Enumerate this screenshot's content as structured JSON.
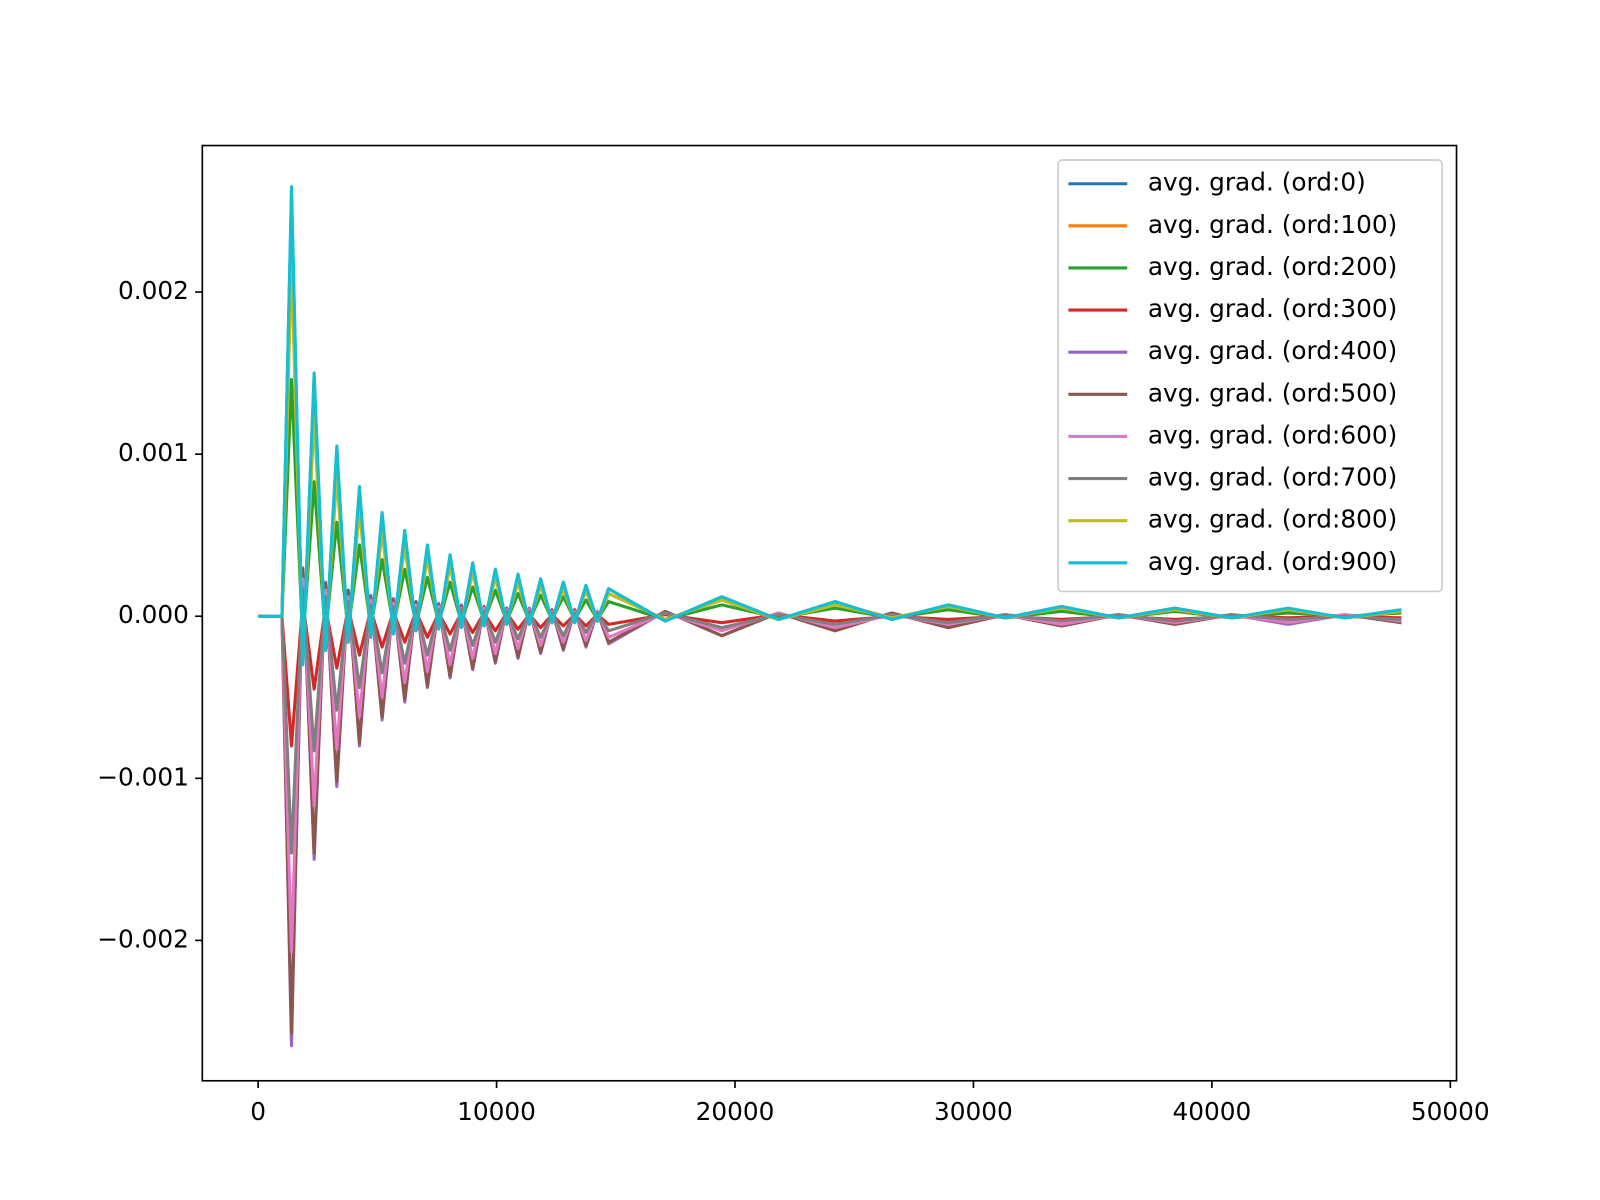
{
  "chart_data": {
    "type": "line",
    "x": [
      0,
      1000,
      1400,
      1875,
      2350,
      2825,
      3300,
      3775,
      4250,
      4725,
      5200,
      5675,
      6150,
      6625,
      7100,
      7575,
      8050,
      8525,
      9000,
      9475,
      9950,
      10425,
      10900,
      11375,
      11850,
      12325,
      12800,
      13275,
      13750,
      14225,
      14700,
      17075,
      19450,
      21825,
      24200,
      26575,
      28950,
      31325,
      33700,
      36075,
      38450,
      40825,
      43200,
      45575,
      47950
    ],
    "series": [
      {
        "name": "avg. grad. (ord:0)",
        "color": "#1f77b4",
        "values": [
          0,
          0,
          0.0026,
          -0.00029,
          0.00147,
          -0.00021,
          0.00103,
          -0.00016,
          0.00078,
          -0.00013,
          0.00063,
          -0.0001,
          0.00052,
          -9e-05,
          0.00043,
          -7e-05,
          0.00037,
          -6e-05,
          0.00032,
          -6e-05,
          0.00028,
          -5e-05,
          0.00025,
          -5e-05,
          0.00023,
          -4e-05,
          0.00021,
          -4e-05,
          0.00019,
          -3e-05,
          0.00017,
          -3e-05,
          0.00012,
          -2e-05,
          9e-05,
          -2e-05,
          7e-05,
          -1e-05,
          6e-05,
          -1e-05,
          5e-05,
          -1e-05,
          4e-05,
          -1e-05,
          4e-05
        ]
      },
      {
        "name": "avg. grad. (ord:100)",
        "color": "#ff7f0e",
        "values": [
          0,
          0,
          0.00225,
          -0.00026,
          0.00128,
          -0.00018,
          0.00089,
          -0.00014,
          0.00068,
          -0.00011,
          0.00054,
          -9e-05,
          0.00045,
          -7e-05,
          0.00037,
          -6e-05,
          0.00032,
          -6e-05,
          0.00028,
          -5e-05,
          0.00025,
          -4e-05,
          0.00022,
          -4e-05,
          0.0002,
          -4e-05,
          0.00018,
          -3e-05,
          0.00016,
          -3e-05,
          0.00014,
          -2e-05,
          0.0001,
          -2e-05,
          8e-05,
          -1e-05,
          6e-05,
          -1e-05,
          5e-05,
          -1e-05,
          4e-05,
          -1e-05,
          4e-05,
          -1e-05,
          3e-05
        ]
      },
      {
        "name": "avg. grad. (ord:200)",
        "color": "#2ca02c",
        "values": [
          0,
          0,
          0.00146,
          -0.00017,
          0.00083,
          -0.00012,
          0.00058,
          -9e-05,
          0.00044,
          -7e-05,
          0.00035,
          -6e-05,
          0.00029,
          -5e-05,
          0.00024,
          -4e-05,
          0.00021,
          -4e-05,
          0.00018,
          -3e-05,
          0.00016,
          -3e-05,
          0.00014,
          -3e-05,
          0.00013,
          -2e-05,
          0.00012,
          -2e-05,
          0.0001,
          -2e-05,
          9e-05,
          -2e-05,
          7e-05,
          -1e-05,
          5e-05,
          -1e-05,
          4e-05,
          -1e-05,
          3e-05,
          -1e-05,
          3e-05,
          -1e-05,
          2e-05,
          0,
          2e-05
        ]
      },
      {
        "name": "avg. grad. (ord:300)",
        "color": "#d62728",
        "values": [
          0,
          0,
          -0.0008,
          9e-05,
          -0.00045,
          6e-05,
          -0.00032,
          5e-05,
          -0.00024,
          4e-05,
          -0.00019,
          3e-05,
          -0.00016,
          3e-05,
          -0.00013,
          2e-05,
          -0.00011,
          2e-05,
          -0.0001,
          2e-05,
          -9e-05,
          2e-05,
          -8e-05,
          1e-05,
          -7e-05,
          1e-05,
          -6e-05,
          1e-05,
          -6e-05,
          1e-05,
          -5e-05,
          1e-05,
          -4e-05,
          1e-05,
          -3e-05,
          0,
          -2e-05,
          0,
          -2e-05,
          0,
          -2e-05,
          0,
          -1e-05,
          0,
          -1e-05
        ]
      },
      {
        "name": "avg. grad. (ord:400)",
        "color": "#9467bd",
        "values": [
          0,
          0,
          -0.00265,
          0.0003,
          -0.0015,
          0.00021,
          -0.00105,
          0.00016,
          -0.0008,
          0.00013,
          -0.00064,
          0.00011,
          -0.00053,
          9e-05,
          -0.00044,
          8e-05,
          -0.00038,
          7e-05,
          -0.00033,
          6e-05,
          -0.00029,
          5e-05,
          -0.00026,
          5e-05,
          -0.00023,
          4e-05,
          -0.00021,
          4e-05,
          -0.00019,
          3e-05,
          -0.00017,
          3e-05,
          -0.00012,
          2e-05,
          -9e-05,
          2e-05,
          -7e-05,
          1e-05,
          -6e-05,
          1e-05,
          -5e-05,
          1e-05,
          -5e-05,
          1e-05,
          -4e-05
        ]
      },
      {
        "name": "avg. grad. (ord:500)",
        "color": "#8c564b",
        "values": [
          0,
          0,
          -0.00257,
          0.00029,
          -0.00146,
          0.0002,
          -0.00102,
          0.00016,
          -0.00078,
          0.00012,
          -0.00062,
          0.0001,
          -0.00051,
          9e-05,
          -0.00043,
          7e-05,
          -0.00037,
          6e-05,
          -0.00032,
          6e-05,
          -0.00028,
          5e-05,
          -0.00025,
          4e-05,
          -0.00022,
          4e-05,
          -0.0002,
          4e-05,
          -0.00018,
          3e-05,
          -0.00016,
          3e-05,
          -0.00012,
          2e-05,
          -9e-05,
          2e-05,
          -7e-05,
          1e-05,
          -6e-05,
          1e-05,
          -5e-05,
          1e-05,
          -4e-05,
          1e-05,
          -4e-05
        ]
      },
      {
        "name": "avg. grad. (ord:600)",
        "color": "#e377c2",
        "values": [
          0,
          0,
          -0.00207,
          0.00023,
          -0.00117,
          0.00016,
          -0.00082,
          0.00012,
          -0.00062,
          0.0001,
          -0.0005,
          8e-05,
          -0.00041,
          7e-05,
          -0.00034,
          6e-05,
          -0.0003,
          5e-05,
          -0.00026,
          5e-05,
          -0.00023,
          4e-05,
          -0.0002,
          4e-05,
          -0.00018,
          3e-05,
          -0.00016,
          3e-05,
          -0.00015,
          3e-05,
          -0.00013,
          2e-05,
          -9e-05,
          2e-05,
          -7e-05,
          1e-05,
          -5e-05,
          1e-05,
          -5e-05,
          1e-05,
          -4e-05,
          1e-05,
          -4e-05,
          1e-05,
          -3e-05
        ]
      },
      {
        "name": "avg. grad. (ord:700)",
        "color": "#7f7f7f",
        "values": [
          0,
          0,
          -0.00146,
          0.00017,
          -0.00083,
          0.00012,
          -0.00058,
          9e-05,
          -0.00044,
          7e-05,
          -0.00035,
          6e-05,
          -0.00029,
          5e-05,
          -0.00024,
          4e-05,
          -0.00021,
          4e-05,
          -0.00018,
          3e-05,
          -0.00016,
          3e-05,
          -0.00014,
          3e-05,
          -0.00013,
          2e-05,
          -0.00012,
          2e-05,
          -0.0001,
          2e-05,
          -9e-05,
          2e-05,
          -7e-05,
          1e-05,
          -5e-05,
          1e-05,
          -4e-05,
          1e-05,
          -3e-05,
          1e-05,
          -3e-05,
          1e-05,
          -2e-05,
          0,
          -2e-05
        ]
      },
      {
        "name": "avg. grad. (ord:800)",
        "color": "#bcbd22",
        "values": [
          0,
          0,
          0.00217,
          -0.00025,
          0.00123,
          -0.00017,
          0.00086,
          -0.00013,
          0.00066,
          -0.0001,
          0.00052,
          -9e-05,
          0.00043,
          -7e-05,
          0.00036,
          -6e-05,
          0.00031,
          -5e-05,
          0.00027,
          -5e-05,
          0.00024,
          -4e-05,
          0.00021,
          -4e-05,
          0.00019,
          -3e-05,
          0.00017,
          -3e-05,
          0.00016,
          -3e-05,
          0.00014,
          -2e-05,
          0.0001,
          -2e-05,
          7e-05,
          -1e-05,
          6e-05,
          -1e-05,
          5e-05,
          -1e-05,
          4e-05,
          -1e-05,
          4e-05,
          -1e-05,
          3e-05
        ]
      },
      {
        "name": "avg. grad. (ord:900)",
        "color": "#17becf",
        "values": [
          0,
          0,
          0.00265,
          -0.0003,
          0.0015,
          -0.00021,
          0.00105,
          -0.00016,
          0.0008,
          -0.00013,
          0.00064,
          -0.00011,
          0.00053,
          -9e-05,
          0.00044,
          -8e-05,
          0.00038,
          -7e-05,
          0.00033,
          -6e-05,
          0.00029,
          -5e-05,
          0.00026,
          -5e-05,
          0.00023,
          -4e-05,
          0.00021,
          -4e-05,
          0.00019,
          -3e-05,
          0.00017,
          -3e-05,
          0.00012,
          -2e-05,
          9e-05,
          -2e-05,
          7e-05,
          -1e-05,
          6e-05,
          -1e-05,
          5e-05,
          -1e-05,
          5e-05,
          -1e-05,
          4e-05
        ]
      }
    ],
    "xlim": [
      -2340,
      50260
    ],
    "xticks": [
      0,
      10000,
      20000,
      30000,
      40000,
      50000
    ],
    "ylim": [
      -0.002866,
      0.002904
    ],
    "yticks": [
      {
        "value": -0.002,
        "label": "−0.002"
      },
      {
        "value": -0.001,
        "label": "−0.001"
      },
      {
        "value": 0,
        "label": "0.000"
      },
      0.001,
      0.002
    ],
    "legend": "upper right"
  }
}
